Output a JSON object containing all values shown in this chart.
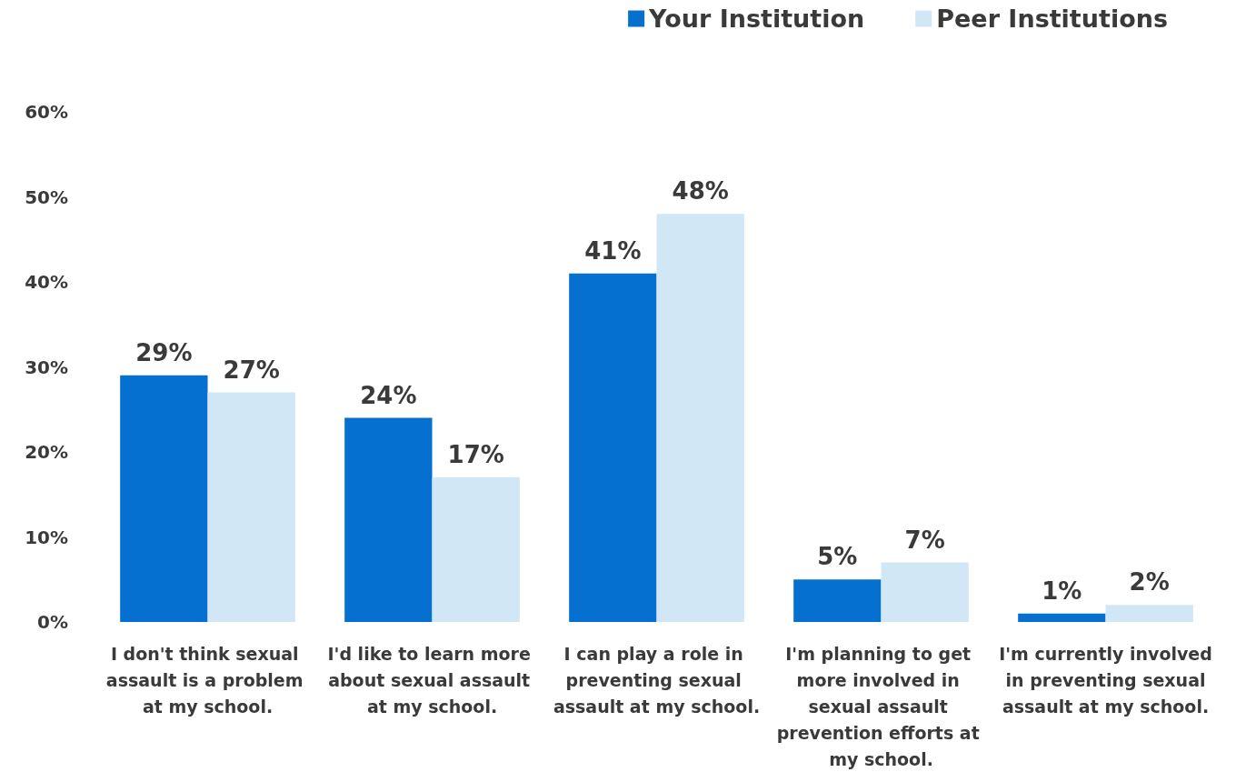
{
  "chart_data": {
    "type": "bar",
    "categories": [
      "I don't think sexual assault is a problem at my school.",
      "I'd like to learn more about sexual assault at my school.",
      "I can play a role in preventing sexual assault at my school.",
      "I'm planning to get more involved in sexual assault prevention efforts at my school.",
      "I'm currently involved in preventing sexual assault at my school."
    ],
    "series": [
      {
        "name": "Your Institution",
        "color": "#0570cf",
        "values": [
          29,
          24,
          41,
          5,
          1
        ],
        "value_labels": [
          "29%",
          "24%",
          "41%",
          "5%",
          "1%"
        ]
      },
      {
        "name": "Peer Institutions",
        "color": "#d1e7f5",
        "values": [
          27,
          17,
          48,
          7,
          2
        ],
        "value_labels": [
          "27%",
          "17%",
          "48%",
          "7%",
          "2%"
        ]
      }
    ],
    "ylim": [
      0,
      60
    ],
    "yticks": [
      {
        "value": 0,
        "label": "0%"
      },
      {
        "value": 10,
        "label": "10%"
      },
      {
        "value": 20,
        "label": "20%"
      },
      {
        "value": 30,
        "label": "30%"
      },
      {
        "value": 40,
        "label": "40%"
      },
      {
        "value": 50,
        "label": "50%"
      },
      {
        "value": 60,
        "label": "60%"
      }
    ],
    "grid": false,
    "legend": "top right"
  }
}
